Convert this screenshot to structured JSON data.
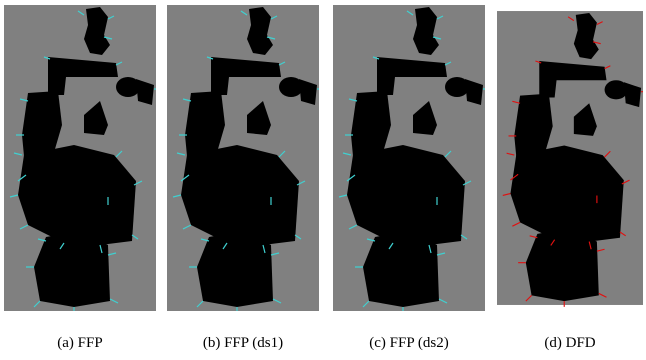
{
  "figure": {
    "panels": [
      {
        "caption": "(a) FFP"
      },
      {
        "caption": "(b) FFP (ds1)"
      },
      {
        "caption": "(c) FFP (ds2)"
      },
      {
        "caption": "(d) DFD"
      }
    ]
  }
}
